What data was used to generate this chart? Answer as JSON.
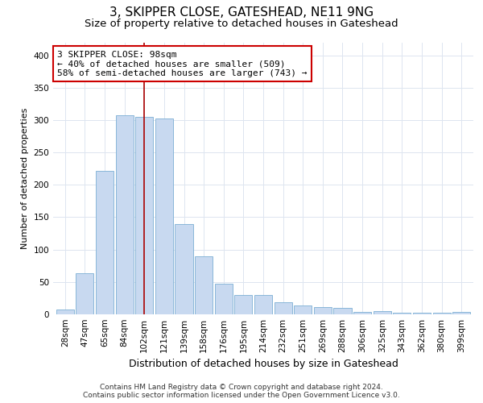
{
  "title": "3, SKIPPER CLOSE, GATESHEAD, NE11 9NG",
  "subtitle": "Size of property relative to detached houses in Gateshead",
  "xlabel": "Distribution of detached houses by size in Gateshead",
  "ylabel": "Number of detached properties",
  "categories": [
    "28sqm",
    "47sqm",
    "65sqm",
    "84sqm",
    "102sqm",
    "121sqm",
    "139sqm",
    "158sqm",
    "176sqm",
    "195sqm",
    "214sqm",
    "232sqm",
    "251sqm",
    "269sqm",
    "288sqm",
    "306sqm",
    "325sqm",
    "343sqm",
    "362sqm",
    "380sqm",
    "399sqm"
  ],
  "values": [
    8,
    63,
    222,
    307,
    305,
    302,
    140,
    90,
    47,
    30,
    30,
    19,
    14,
    11,
    10,
    4,
    5,
    3,
    2,
    3,
    4
  ],
  "bar_color": "#c8d9f0",
  "bar_edge_color": "#7bafd4",
  "vline_color": "#aa0000",
  "ylim": [
    0,
    420
  ],
  "yticks": [
    0,
    50,
    100,
    150,
    200,
    250,
    300,
    350,
    400
  ],
  "annotation_title": "3 SKIPPER CLOSE: 98sqm",
  "annotation_line1": "← 40% of detached houses are smaller (509)",
  "annotation_line2": "58% of semi-detached houses are larger (743) →",
  "annotation_box_color": "#ffffff",
  "annotation_box_edge": "#cc0000",
  "footer_line1": "Contains HM Land Registry data © Crown copyright and database right 2024.",
  "footer_line2": "Contains public sector information licensed under the Open Government Licence v3.0.",
  "title_fontsize": 11,
  "subtitle_fontsize": 9.5,
  "xlabel_fontsize": 9,
  "ylabel_fontsize": 8,
  "tick_fontsize": 7.5,
  "footer_fontsize": 6.5,
  "annotation_fontsize": 8,
  "background_color": "#ffffff",
  "grid_color": "#dde5f0"
}
